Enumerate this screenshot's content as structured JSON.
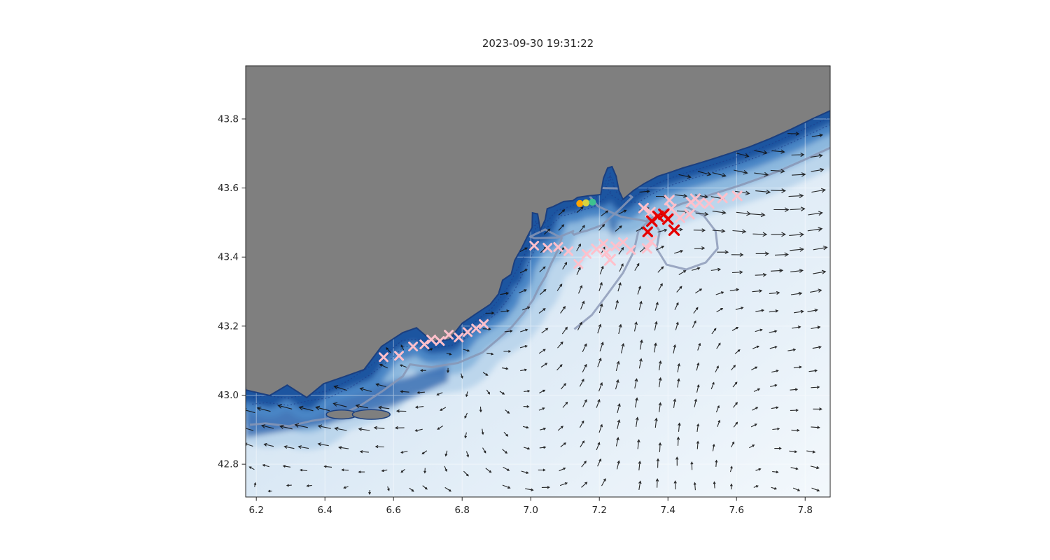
{
  "chart_data": {
    "type": "map",
    "title": "2023-09-30 19:31:22",
    "x_axis": {
      "tick_labels": [
        "6.2",
        "6.4",
        "6.6",
        "6.8",
        "7.0",
        "7.2",
        "7.4",
        "7.6",
        "7.8"
      ],
      "tick_values": [
        6.2,
        6.4,
        6.6,
        6.8,
        7.0,
        7.2,
        7.4,
        7.6,
        7.8
      ],
      "range": [
        6.169,
        7.873
      ]
    },
    "y_axis": {
      "tick_labels": [
        "42.8",
        "43.0",
        "43.2",
        "43.4",
        "43.6",
        "43.8"
      ],
      "tick_values": [
        42.8,
        43.0,
        43.2,
        43.4,
        43.6,
        43.8
      ],
      "range": [
        42.705,
        43.954
      ]
    },
    "colors": {
      "land": "#7f7f7f",
      "coast_edge": "#1b3f7f",
      "deep": "#1c55a0",
      "slope": "#4a86c6",
      "shelf": "#8cb8de",
      "shallow": "#bcd6ec",
      "ocean_near": "#aecbe6",
      "ocean_mid": "#d8e7f4",
      "ocean_far": "#f3f8fc",
      "contour_dashed": "#1e3d8c",
      "contour_shelf": "#8896b5",
      "grid": "#ffffff",
      "axis": "#262626"
    },
    "coastline": [
      [
        6.169,
        43.015
      ],
      [
        6.239,
        42.999
      ],
      [
        6.29,
        43.029
      ],
      [
        6.347,
        42.993
      ],
      [
        6.396,
        43.033
      ],
      [
        6.457,
        43.054
      ],
      [
        6.514,
        43.074
      ],
      [
        6.565,
        43.141
      ],
      [
        6.627,
        43.181
      ],
      [
        6.667,
        43.195
      ],
      [
        6.714,
        43.155
      ],
      [
        6.763,
        43.161
      ],
      [
        6.8,
        43.208
      ],
      [
        6.841,
        43.236
      ],
      [
        6.882,
        43.263
      ],
      [
        6.906,
        43.293
      ],
      [
        6.918,
        43.333
      ],
      [
        6.943,
        43.35
      ],
      [
        6.953,
        43.39
      ],
      [
        6.973,
        43.425
      ],
      [
        6.988,
        43.455
      ],
      [
        7.004,
        43.486
      ],
      [
        7.005,
        43.528
      ],
      [
        7.02,
        43.525
      ],
      [
        7.028,
        43.478
      ],
      [
        7.042,
        43.508
      ],
      [
        7.048,
        43.54
      ],
      [
        7.065,
        43.546
      ],
      [
        7.096,
        43.561
      ],
      [
        7.122,
        43.563
      ],
      [
        7.137,
        43.573
      ],
      [
        7.167,
        43.577
      ],
      [
        7.204,
        43.581
      ],
      [
        7.212,
        43.628
      ],
      [
        7.224,
        43.658
      ],
      [
        7.237,
        43.662
      ],
      [
        7.249,
        43.634
      ],
      [
        7.257,
        43.593
      ],
      [
        7.269,
        43.567
      ],
      [
        7.3,
        43.593
      ],
      [
        7.331,
        43.613
      ],
      [
        7.371,
        43.634
      ],
      [
        7.402,
        43.644
      ],
      [
        7.443,
        43.658
      ],
      [
        7.484,
        43.67
      ],
      [
        7.524,
        43.682
      ],
      [
        7.576,
        43.699
      ],
      [
        7.637,
        43.719
      ],
      [
        7.698,
        43.743
      ],
      [
        7.759,
        43.77
      ],
      [
        7.82,
        43.8
      ],
      [
        7.873,
        43.824
      ]
    ],
    "islands": [
      {
        "lon": 6.449,
        "lat": 42.944,
        "rx": 0.045,
        "ry": 0.013
      },
      {
        "lon": 6.535,
        "lat": 42.944,
        "rx": 0.055,
        "ry": 0.014
      }
    ],
    "deep_patches": [
      {
        "color": "#2c63ac",
        "opacity": 0.75,
        "points": [
          [
            6.169,
            43.013
          ],
          [
            6.433,
            43.019
          ],
          [
            6.596,
            43.039
          ],
          [
            6.759,
            43.09
          ],
          [
            6.759,
            43.039
          ],
          [
            6.596,
            42.968
          ],
          [
            6.412,
            42.918
          ],
          [
            6.169,
            42.877
          ]
        ]
      },
      {
        "color": "#2c63ac",
        "opacity": 0.7,
        "points": [
          [
            6.627,
            43.1
          ],
          [
            6.759,
            43.151
          ],
          [
            6.882,
            43.232
          ],
          [
            6.953,
            43.303
          ],
          [
            6.994,
            43.394
          ],
          [
            7.004,
            43.475
          ],
          [
            6.943,
            43.354
          ],
          [
            6.892,
            43.283
          ],
          [
            6.79,
            43.212
          ],
          [
            6.657,
            43.171
          ]
        ]
      },
      {
        "color": "#1c55a0",
        "opacity": 0.6,
        "points": [
          [
            7.231,
            43.655
          ],
          [
            7.252,
            43.6
          ],
          [
            7.262,
            43.52
          ],
          [
            7.24,
            43.455
          ],
          [
            7.22,
            43.52
          ],
          [
            7.214,
            43.6
          ]
        ]
      }
    ],
    "canyon_contour": [
      [
        7.453,
        43.546
      ],
      [
        7.504,
        43.52
      ],
      [
        7.539,
        43.475
      ],
      [
        7.545,
        43.425
      ],
      [
        7.51,
        43.384
      ],
      [
        7.453,
        43.364
      ],
      [
        7.396,
        43.378
      ],
      [
        7.367,
        43.425
      ],
      [
        7.376,
        43.475
      ],
      [
        7.351,
        43.512
      ],
      [
        7.314,
        43.475
      ],
      [
        7.3,
        43.415
      ],
      [
        7.269,
        43.354
      ],
      [
        7.224,
        43.293
      ],
      [
        7.178,
        43.232
      ],
      [
        7.127,
        43.191
      ]
    ],
    "tracks": {
      "pink_color": "#ffc0cb",
      "red_color": "#e60000",
      "pink_markers": [
        [
          7.01,
          43.433,
          5.5
        ],
        [
          7.049,
          43.427,
          5.5
        ],
        [
          7.08,
          43.429,
          5.5
        ],
        [
          7.11,
          43.417,
          5.5
        ],
        [
          7.139,
          43.38,
          5.5
        ],
        [
          7.163,
          43.409,
          5.5
        ],
        [
          7.192,
          43.423,
          6.5
        ],
        [
          7.212,
          43.439,
          5.5
        ],
        [
          7.22,
          43.413,
          5.5
        ],
        [
          7.231,
          43.392,
          7.0
        ],
        [
          7.247,
          43.431,
          5.5
        ],
        [
          7.269,
          43.443,
          5.5
        ],
        [
          7.292,
          43.421,
          5.5
        ],
        [
          6.571,
          43.11,
          5.5
        ],
        [
          6.616,
          43.114,
          5.5
        ],
        [
          6.657,
          43.141,
          5.5
        ],
        [
          6.69,
          43.147,
          5.5
        ],
        [
          6.71,
          43.161,
          5.5
        ],
        [
          6.735,
          43.157,
          5.5
        ],
        [
          6.761,
          43.175,
          5.5
        ],
        [
          6.79,
          43.167,
          5.5
        ],
        [
          6.816,
          43.183,
          5.5
        ],
        [
          6.841,
          43.193,
          5.5
        ],
        [
          6.863,
          43.206,
          5.5
        ],
        [
          7.329,
          43.542,
          6.0
        ],
        [
          7.349,
          43.53,
          6.0
        ],
        [
          7.404,
          43.565,
          6.0
        ],
        [
          7.41,
          43.54,
          6.0
        ],
        [
          7.435,
          43.514,
          6.0
        ],
        [
          7.463,
          43.524,
          6.0
        ],
        [
          7.467,
          43.559,
          6.0
        ],
        [
          7.48,
          43.569,
          6.0
        ],
        [
          7.492,
          43.557,
          6.0
        ],
        [
          7.52,
          43.555,
          6.0
        ],
        [
          7.559,
          43.571,
          6.0
        ],
        [
          7.602,
          43.577,
          6.0
        ],
        [
          7.351,
          43.445,
          7.0
        ],
        [
          7.339,
          43.425,
          6.0
        ]
      ],
      "red_markers": [
        [
          7.353,
          43.504,
          6.5
        ],
        [
          7.371,
          43.518,
          6.5
        ],
        [
          7.388,
          43.524,
          6.5
        ],
        [
          7.4,
          43.51,
          6.5
        ],
        [
          7.418,
          43.478,
          6.5
        ],
        [
          7.341,
          43.473,
          6.0
        ]
      ]
    },
    "release_points": [
      {
        "lon": 7.143,
        "lat": 43.555,
        "color": "#ffa500"
      },
      {
        "lon": 7.161,
        "lat": 43.557,
        "color": "#d9d33c"
      },
      {
        "lon": 7.18,
        "lat": 43.559,
        "color": "#3ec28f"
      }
    ],
    "quiver": {
      "color": "#111111",
      "lon_step": 0.056,
      "lat_step": 0.057,
      "background_u": 0.55,
      "coastal_jet": {
        "lon": 6.4,
        "lat": 43.0,
        "strength": 1.0
      },
      "vortex_east": {
        "lon": 7.55,
        "lat": 43.22,
        "strength": 1.6
      },
      "vortex_west": {
        "lon": 6.5,
        "lat": 43.3,
        "strength": 2.6
      },
      "updraft": {
        "lon": 7.05,
        "lat": 43.25,
        "strength": 0.6
      }
    }
  }
}
